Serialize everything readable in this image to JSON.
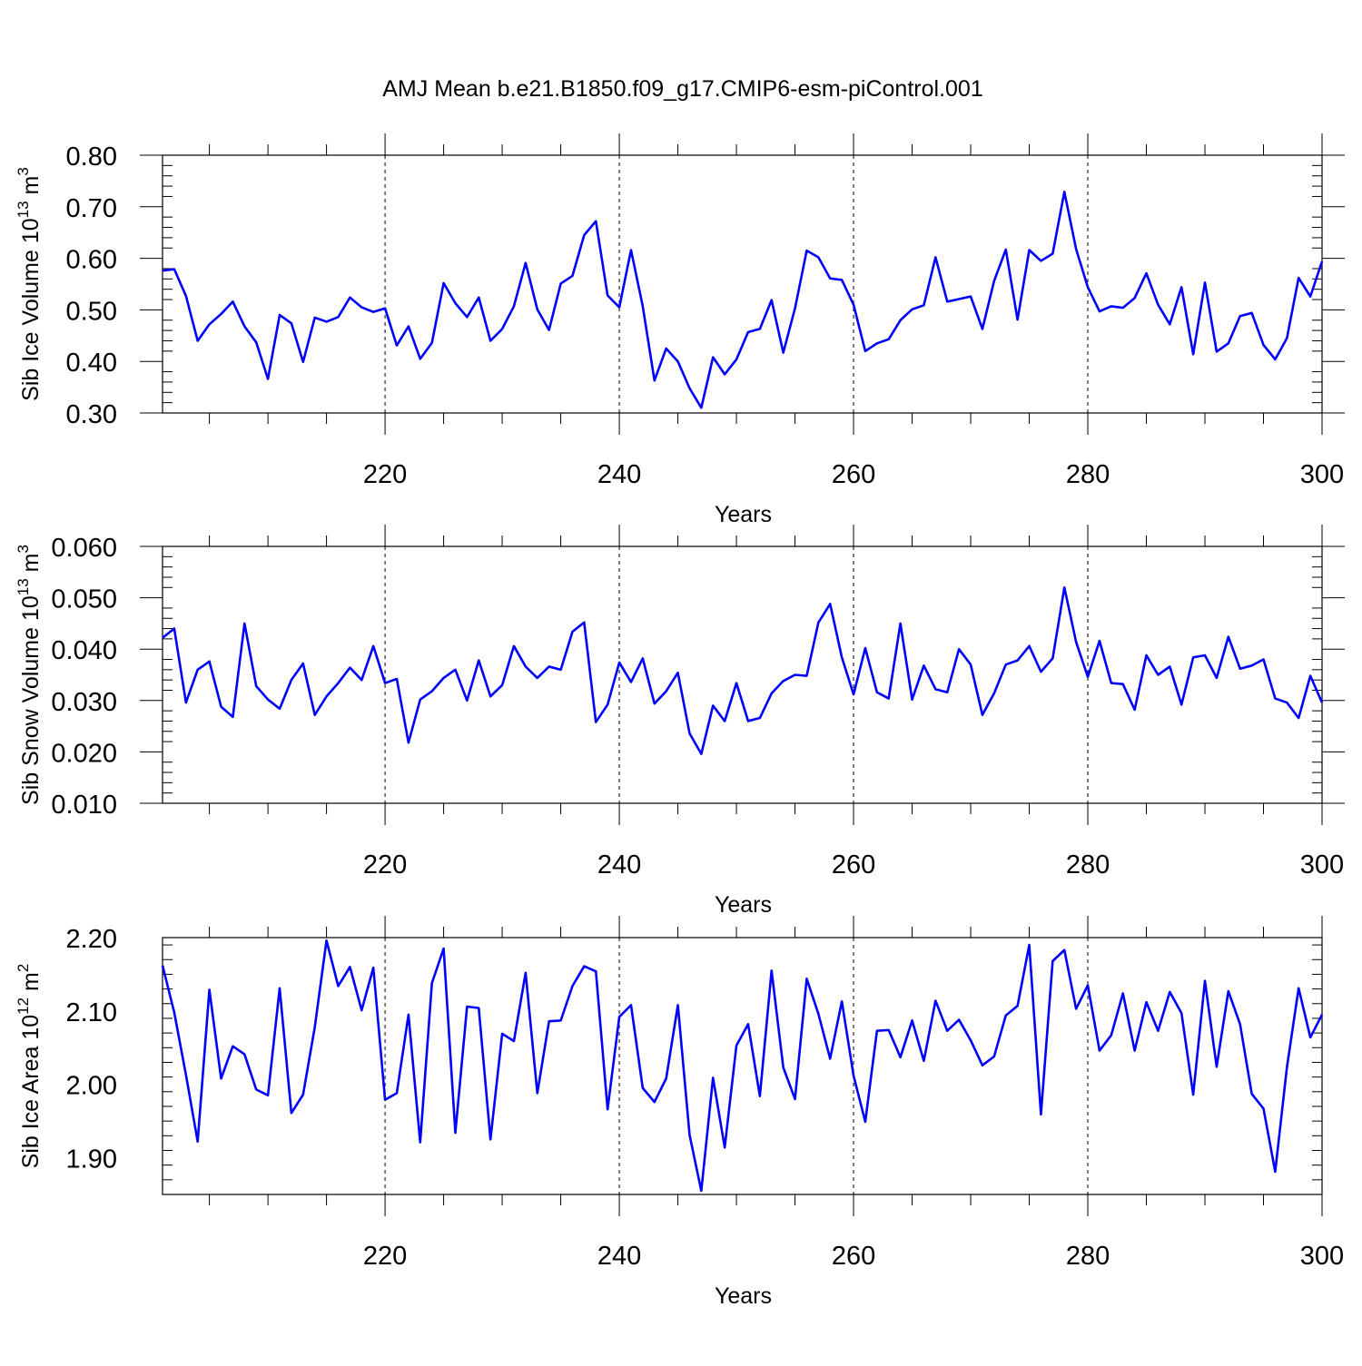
{
  "title": "AMJ Mean b.e21.B1850.f09_g17.CMIP6-esm-piControl.001",
  "colors": {
    "line": "#0000ff",
    "axis": "#000000",
    "grid": "#000000",
    "background": "#ffffff"
  },
  "chart_data": [
    {
      "type": "line",
      "panel": "top",
      "xlabel": "Years",
      "ylabel_main": "Sib Ice Volume 10",
      "ylabel_exp": "13",
      "ylabel_unit": "m",
      "ylabel_unit_exp": "3",
      "xlim": [
        201,
        300
      ],
      "ylim": [
        0.3,
        0.8
      ],
      "xticks": [
        220,
        240,
        260,
        280,
        300
      ],
      "xtick_labels": [
        "220",
        "240",
        "260",
        "280",
        "300"
      ],
      "yticks": [
        0.3,
        0.4,
        0.5,
        0.6,
        0.7,
        0.8
      ],
      "ytick_labels": [
        "0.30",
        "0.40",
        "0.50",
        "0.60",
        "0.70",
        "0.80"
      ],
      "grid": "vertical dashed at major x ticks",
      "x_start": 201,
      "values": [
        0.576,
        0.579,
        0.527,
        0.44,
        0.472,
        0.492,
        0.516,
        0.468,
        0.437,
        0.366,
        0.49,
        0.474,
        0.399,
        0.485,
        0.477,
        0.486,
        0.524,
        0.505,
        0.496,
        0.503,
        0.431,
        0.468,
        0.405,
        0.436,
        0.552,
        0.513,
        0.486,
        0.524,
        0.44,
        0.463,
        0.507,
        0.591,
        0.501,
        0.461,
        0.551,
        0.566,
        0.645,
        0.672,
        0.528,
        0.505,
        0.616,
        0.507,
        0.363,
        0.425,
        0.4,
        0.348,
        0.31,
        0.408,
        0.375,
        0.404,
        0.457,
        0.463,
        0.519,
        0.417,
        0.503,
        0.615,
        0.602,
        0.561,
        0.558,
        0.51,
        0.42,
        0.435,
        0.443,
        0.48,
        0.501,
        0.509,
        0.602,
        0.516,
        0.521,
        0.526,
        0.463,
        0.556,
        0.617,
        0.481,
        0.616,
        0.595,
        0.609,
        0.729,
        0.618,
        0.544,
        0.497,
        0.507,
        0.504,
        0.523,
        0.571,
        0.51,
        0.472,
        0.544,
        0.414,
        0.553,
        0.419,
        0.435,
        0.488,
        0.494,
        0.432,
        0.404,
        0.445,
        0.562,
        0.526,
        0.594
      ]
    },
    {
      "type": "line",
      "panel": "middle",
      "xlabel": "Years",
      "ylabel_main": "Sib Snow Volume 10",
      "ylabel_exp": "13",
      "ylabel_unit": "m",
      "ylabel_unit_exp": "3",
      "xlim": [
        201,
        300
      ],
      "ylim": [
        0.01,
        0.06
      ],
      "xticks": [
        220,
        240,
        260,
        280,
        300
      ],
      "xtick_labels": [
        "220",
        "240",
        "260",
        "280",
        "300"
      ],
      "yticks": [
        0.01,
        0.02,
        0.03,
        0.04,
        0.05,
        0.06
      ],
      "ytick_labels": [
        "0.010",
        "0.020",
        "0.030",
        "0.040",
        "0.050",
        "0.060"
      ],
      "grid": "vertical dashed at major x ticks",
      "x_start": 201,
      "values": [
        0.0422,
        0.044,
        0.0296,
        0.036,
        0.0376,
        0.0288,
        0.0268,
        0.045,
        0.0328,
        0.0302,
        0.0284,
        0.034,
        0.0372,
        0.0272,
        0.0308,
        0.0334,
        0.0364,
        0.034,
        0.0406,
        0.0334,
        0.0342,
        0.0218,
        0.0302,
        0.0318,
        0.0344,
        0.036,
        0.03,
        0.0378,
        0.0308,
        0.033,
        0.0406,
        0.0366,
        0.0344,
        0.0366,
        0.036,
        0.0434,
        0.0452,
        0.0258,
        0.0292,
        0.0374,
        0.0336,
        0.0382,
        0.0294,
        0.0318,
        0.0354,
        0.0236,
        0.0196,
        0.029,
        0.026,
        0.0334,
        0.026,
        0.0266,
        0.0314,
        0.0338,
        0.035,
        0.0348,
        0.0452,
        0.0488,
        0.0384,
        0.0312,
        0.0402,
        0.0316,
        0.0304,
        0.045,
        0.0302,
        0.0368,
        0.0322,
        0.0316,
        0.04,
        0.037,
        0.0272,
        0.0314,
        0.037,
        0.0378,
        0.0406,
        0.0356,
        0.0382,
        0.052,
        0.0414,
        0.0346,
        0.0416,
        0.0334,
        0.0332,
        0.0282,
        0.0388,
        0.035,
        0.0366,
        0.0292,
        0.0384,
        0.0388,
        0.0344,
        0.0424,
        0.0362,
        0.0368,
        0.038,
        0.0304,
        0.0296,
        0.0266,
        0.0348,
        0.0296
      ]
    },
    {
      "type": "line",
      "panel": "bottom",
      "xlabel": "Years",
      "ylabel_main": "Sib Ice Area 10",
      "ylabel_exp": "12",
      "ylabel_unit": "m",
      "ylabel_unit_exp": "2",
      "xlim": [
        201,
        300
      ],
      "ylim": [
        1.85,
        2.2
      ],
      "xticks": [
        220,
        240,
        260,
        280,
        300
      ],
      "xtick_labels": [
        "220",
        "240",
        "260",
        "280",
        "300"
      ],
      "yticks": [
        1.9,
        2.0,
        2.1,
        2.2
      ],
      "ytick_labels": [
        "1.90",
        "2.00",
        "2.10",
        "2.20"
      ],
      "grid": "vertical dashed at major x ticks",
      "x_start": 201,
      "values": [
        2.162,
        2.098,
        2.013,
        1.922,
        2.129,
        2.008,
        2.052,
        2.041,
        1.993,
        1.985,
        2.131,
        1.961,
        1.986,
        2.078,
        2.196,
        2.134,
        2.16,
        2.101,
        2.159,
        1.979,
        1.988,
        2.095,
        1.921,
        2.138,
        2.185,
        1.934,
        2.106,
        2.104,
        1.925,
        2.069,
        2.059,
        2.152,
        1.988,
        2.086,
        2.087,
        2.134,
        2.161,
        2.154,
        1.966,
        2.092,
        2.108,
        1.995,
        1.976,
        2.008,
        2.108,
        1.931,
        1.855,
        2.009,
        1.914,
        2.053,
        2.082,
        1.984,
        2.155,
        2.023,
        1.98,
        2.144,
        2.096,
        2.035,
        2.113,
        2.012,
        1.949,
        2.073,
        2.074,
        2.037,
        2.087,
        2.032,
        2.114,
        2.073,
        2.088,
        2.06,
        2.026,
        2.038,
        2.094,
        2.107,
        2.19,
        1.959,
        2.168,
        2.183,
        2.103,
        2.135,
        2.046,
        2.067,
        2.124,
        2.046,
        2.112,
        2.073,
        2.126,
        2.097,
        1.986,
        2.141,
        2.024,
        2.127,
        2.082,
        1.987,
        1.967,
        1.881,
        2.023,
        2.131,
        2.064,
        2.095
      ]
    }
  ]
}
